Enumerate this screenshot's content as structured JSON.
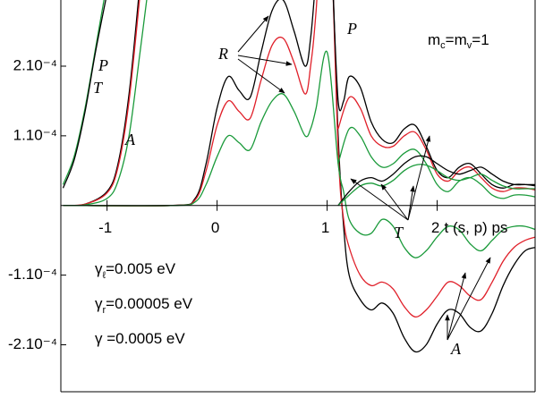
{
  "chart_data": {
    "type": "line",
    "xlabel": "t (s, p) ps",
    "xlim": [
      -1.42,
      2.89
    ],
    "ylim": [
      -0.00027,
      0.000295
    ],
    "xticks": [
      -1,
      0,
      1,
      2
    ],
    "yticks": [
      {
        "value": 0.0002,
        "label": "2.10⁻⁴"
      },
      {
        "value": 0.0001,
        "label": "1.10⁻⁴"
      },
      {
        "value": -0.0001,
        "label": "-1.10⁻⁴"
      },
      {
        "value": -0.0002,
        "label": "-2.10⁻⁴"
      }
    ],
    "annotations": [
      "P",
      "T",
      "A",
      "R",
      "P",
      "T",
      "A"
    ],
    "mass_label": [
      "m",
      "c",
      "=m",
      "v",
      "=1"
    ],
    "parameters": [
      {
        "symbol": "γ",
        "sub": "ℓ",
        "text": "=0.005 eV"
      },
      {
        "symbol": "γ",
        "sub": "r",
        "text": "=0.00005 eV"
      },
      {
        "symbol": "γ",
        "sub": "",
        "text": " =0.0005 eV"
      }
    ],
    "series": [
      {
        "color": "#1a9a3a",
        "x": [
          -1.4,
          -1.3,
          -1.2,
          -1.1,
          -1.0
        ],
        "values": [
          3e-05,
          7e-05,
          0.00014,
          0.00023,
          0.00032
        ]
      },
      {
        "color": "#000000",
        "x": [
          -1.4,
          -1.3,
          -1.2,
          -1.1,
          -0.98
        ],
        "values": [
          2.5e-05,
          6.5e-05,
          0.000135,
          0.000225,
          0.00032
        ]
      },
      {
        "color": "#000000",
        "x": [
          -1.4,
          -1.2,
          -1.0,
          -0.9,
          -0.8,
          -0.7
        ],
        "values": [
          0,
          2e-06,
          2e-05,
          6e-05,
          0.00016,
          0.00032
        ]
      },
      {
        "color": "#e0202a",
        "x": [
          -1.4,
          -1.2,
          -1.0,
          -0.9,
          -0.8,
          -0.69
        ],
        "values": [
          0,
          2e-06,
          1.8e-05,
          5.5e-05,
          0.00015,
          0.00032
        ]
      },
      {
        "color": "#1a9a3a",
        "x": [
          -1.4,
          -1.2,
          -1.0,
          -0.9,
          -0.8,
          -0.7,
          -0.62
        ],
        "values": [
          0,
          1e-06,
          1e-05,
          3.5e-05,
          0.0001,
          0.00022,
          0.00032
        ]
      },
      {
        "color": "#000000",
        "x": [
          -1.4,
          -0.4,
          -0.2,
          -0.1,
          0,
          0.1,
          0.2,
          0.3,
          0.4,
          0.5,
          0.6,
          0.7,
          0.8,
          0.85,
          0.9,
          1.0,
          1.1,
          1.15,
          1.2,
          1.3,
          1.4,
          1.5,
          1.6,
          1.7,
          1.8,
          1.9,
          2.0,
          2.1,
          2.2,
          2.3,
          2.4,
          2.5,
          2.6,
          2.7,
          2.8,
          2.9
        ],
        "values": [
          0,
          0,
          1e-05,
          6e-05,
          0.00014,
          0.000185,
          0.000165,
          0.000155,
          0.00022,
          0.00028,
          0.000295,
          0.00025,
          0.0002,
          0.00024,
          0.00033,
          0.0005,
          0.0001,
          -3e-05,
          -0.0001,
          -0.000135,
          -0.00015,
          -0.00014,
          -0.000155,
          -0.00019,
          -0.00021,
          -0.0002,
          -0.00017,
          -0.00015,
          -0.000155,
          -0.000175,
          -0.00018,
          -0.000155,
          -0.000115,
          -8.5e-05,
          -6.5e-05,
          -6e-05
        ]
      },
      {
        "color": "#e0202a",
        "x": [
          -1.4,
          -0.4,
          -0.2,
          -0.1,
          0,
          0.1,
          0.2,
          0.3,
          0.4,
          0.5,
          0.6,
          0.7,
          0.8,
          0.85,
          0.9,
          1.0,
          1.1,
          1.15,
          1.2,
          1.3,
          1.4,
          1.5,
          1.6,
          1.7,
          1.8,
          1.9,
          2.0,
          2.1,
          2.2,
          2.3,
          2.4,
          2.5,
          2.6,
          2.7,
          2.8,
          2.9
        ],
        "values": [
          0,
          0,
          8e-06,
          5e-05,
          0.000115,
          0.00015,
          0.000135,
          0.000125,
          0.00018,
          0.00023,
          0.00024,
          0.000205,
          0.00016,
          0.0002,
          0.00028,
          0.0005,
          8e-05,
          -2e-05,
          -6e-05,
          -0.0001,
          -0.000115,
          -0.00011,
          -0.00012,
          -0.000145,
          -0.00016,
          -0.00015,
          -0.00013,
          -0.00011,
          -0.000115,
          -0.00013,
          -0.000135,
          -0.00011,
          -8e-05,
          -6e-05,
          -5e-05,
          -4.5e-05
        ]
      },
      {
        "color": "#1a9a3a",
        "x": [
          -1.4,
          -0.4,
          -0.2,
          -0.1,
          0,
          0.1,
          0.2,
          0.3,
          0.4,
          0.5,
          0.6,
          0.7,
          0.8,
          0.85,
          0.9,
          1.0,
          1.1,
          1.15,
          1.2,
          1.3,
          1.4,
          1.5,
          1.6,
          1.7,
          1.8,
          1.9,
          2.0,
          2.1,
          2.2,
          2.3,
          2.4,
          2.5,
          2.6,
          2.7,
          2.8,
          2.9
        ],
        "values": [
          0,
          0,
          5e-06,
          3e-05,
          7e-05,
          0.0001,
          9e-05,
          8e-05,
          0.00012,
          0.00015,
          0.00016,
          0.000135,
          0.0001,
          0.00011,
          0.00014,
          0.00022,
          6e-05,
          2e-05,
          -2e-05,
          -4e-05,
          -4e-05,
          -2e-05,
          -3e-05,
          -6e-05,
          -7.5e-05,
          -6.5e-05,
          -4.5e-05,
          -3e-05,
          -3.5e-05,
          -5.5e-05,
          -6.5e-05,
          -5e-05,
          -3.5e-05,
          -3e-05,
          -3e-05,
          -3.5e-05
        ]
      },
      {
        "color": "#000000",
        "x": [
          1.05,
          1.1,
          1.15,
          1.2,
          1.3,
          1.4,
          1.5,
          1.6,
          1.7,
          1.8,
          1.9,
          2.0,
          2.1,
          2.2,
          2.3,
          2.4,
          2.5,
          2.6,
          2.7,
          2.8,
          2.9
        ],
        "values": [
          0.00032,
          0.00015,
          0.00015,
          0.000185,
          0.00017,
          0.00012,
          9.5e-05,
          9e-05,
          0.00011,
          0.000115,
          8.5e-05,
          5e-05,
          4e-05,
          5.5e-05,
          6e-05,
          4.5e-05,
          3e-05,
          2.5e-05,
          3e-05,
          3e-05,
          2.8e-05
        ]
      },
      {
        "color": "#e0202a",
        "x": [
          1.1,
          1.2,
          1.3,
          1.4,
          1.5,
          1.6,
          1.7,
          1.8,
          1.9,
          2.0,
          2.1,
          2.2,
          2.3,
          2.4,
          2.5,
          2.6,
          2.7,
          2.8,
          2.9
        ],
        "values": [
          0.00011,
          0.000155,
          0.00014,
          0.0001,
          8.5e-05,
          8.5e-05,
          0.0001,
          0.000105,
          8e-05,
          4.5e-05,
          3.5e-05,
          5e-05,
          5.5e-05,
          4e-05,
          2.5e-05,
          2e-05,
          2.5e-05,
          2.5e-05,
          2.2e-05
        ]
      },
      {
        "color": "#1a9a3a",
        "x": [
          1.1,
          1.2,
          1.3,
          1.4,
          1.5,
          1.6,
          1.7,
          1.8,
          1.9,
          2.0,
          2.1,
          2.2,
          2.3,
          2.4,
          2.5,
          2.6,
          2.7,
          2.8,
          2.9
        ],
        "values": [
          6e-05,
          0.00011,
          0.0001,
          7e-05,
          5.5e-05,
          6e-05,
          7.5e-05,
          8e-05,
          6e-05,
          3e-05,
          2e-05,
          3.5e-05,
          4e-05,
          3e-05,
          1.5e-05,
          1e-05,
          1.5e-05,
          1.5e-05,
          1.2e-05
        ]
      },
      {
        "color": "#000000",
        "x": [
          1.1,
          1.2,
          1.3,
          1.4,
          1.5,
          1.6,
          1.7,
          1.8,
          1.9,
          2.0,
          2.1,
          2.2,
          2.3,
          2.4,
          2.5,
          2.6,
          2.7,
          2.8,
          2.9
        ],
        "values": [
          0,
          2e-05,
          3.5e-05,
          4e-05,
          3.5e-05,
          4.5e-05,
          6e-05,
          7e-05,
          7e-05,
          6e-05,
          5e-05,
          4.5e-05,
          5e-05,
          5.5e-05,
          4.5e-05,
          3.5e-05,
          3e-05,
          3e-05,
          3e-05
        ]
      },
      {
        "color": "#1a9a3a",
        "x": [
          1.1,
          1.2,
          1.3,
          1.4,
          1.5,
          1.6,
          1.7,
          1.8,
          1.9,
          2.0,
          2.1,
          2.2,
          2.3,
          2.4,
          2.5,
          2.6,
          2.7,
          2.8,
          2.9
        ],
        "values": [
          0,
          1.5e-05,
          2.8e-05,
          3.2e-05,
          2.8e-05,
          3.6e-05,
          5e-05,
          5.8e-05,
          5.8e-05,
          5e-05,
          4e-05,
          3.6e-05,
          4e-05,
          4.5e-05,
          3.6e-05,
          2.8e-05,
          2.4e-05,
          2.4e-05,
          2.4e-05
        ]
      }
    ]
  }
}
